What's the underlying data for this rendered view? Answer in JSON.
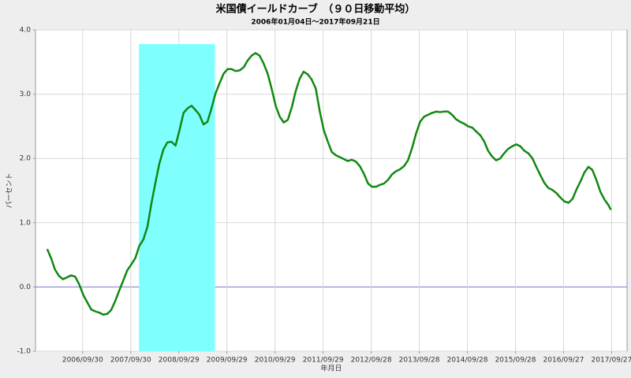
{
  "chart_data": {
    "type": "line",
    "title": "米国債イールドカーブ　（９０日移動平均）",
    "subtitle": "2006年01月04日～2017年09月21日",
    "y_label": "パーセント",
    "x_label": "年月日",
    "xlim": [
      "2005-10-07",
      "2018-01-22"
    ],
    "ylim": [
      -1.0,
      4.0
    ],
    "yticks": [
      {
        "value": -1.0,
        "label": "-1.0"
      },
      {
        "value": 0.0,
        "label": "0.0"
      },
      {
        "value": 1.0,
        "label": "1.0"
      },
      {
        "value": 2.0,
        "label": "2.0"
      },
      {
        "value": 3.0,
        "label": "3.0"
      },
      {
        "value": 4.0,
        "label": "4.0"
      }
    ],
    "xticks": [
      {
        "value": "2006-09-30",
        "label": "2006/09/30"
      },
      {
        "value": "2007-09-30",
        "label": "2007/09/30"
      },
      {
        "value": "2008-09-29",
        "label": "2008/09/29"
      },
      {
        "value": "2009-09-29",
        "label": "2009/09/29"
      },
      {
        "value": "2010-09-29",
        "label": "2010/09/29"
      },
      {
        "value": "2011-09-29",
        "label": "2011/09/29"
      },
      {
        "value": "2012-09-28",
        "label": "2012/09/28"
      },
      {
        "value": "2013-09-28",
        "label": "2013/09/28"
      },
      {
        "value": "2014-09-28",
        "label": "2014/09/28"
      },
      {
        "value": "2015-09-28",
        "label": "2015/09/28"
      },
      {
        "value": "2016-09-27",
        "label": "2016/09/27"
      },
      {
        "value": "2017-09-27",
        "label": "2017/09/27"
      }
    ],
    "grid": true,
    "zero_line_color": "#7777cc",
    "highlight": {
      "x": [
        "2007-12-01",
        "2009-06-30"
      ],
      "ylim": [
        -1.0,
        3.78
      ],
      "color": "#80ffff"
    },
    "x": [
      "2006-01-04",
      "2006-02-04",
      "2006-03-04",
      "2006-04-04",
      "2006-05-04",
      "2006-06-04",
      "2006-07-04",
      "2006-08-04",
      "2006-09-04",
      "2006-10-04",
      "2006-11-04",
      "2006-12-04",
      "2007-01-04",
      "2007-02-04",
      "2007-03-04",
      "2007-04-04",
      "2007-05-04",
      "2007-06-04",
      "2007-07-04",
      "2007-08-04",
      "2007-09-04",
      "2007-10-04",
      "2007-11-04",
      "2007-12-04",
      "2008-01-04",
      "2008-02-04",
      "2008-03-04",
      "2008-04-04",
      "2008-05-04",
      "2008-06-04",
      "2008-07-04",
      "2008-08-04",
      "2008-09-04",
      "2008-10-04",
      "2008-11-04",
      "2008-12-04",
      "2009-01-04",
      "2009-02-04",
      "2009-03-04",
      "2009-04-04",
      "2009-05-04",
      "2009-06-04",
      "2009-07-04",
      "2009-08-04",
      "2009-09-04",
      "2009-10-04",
      "2009-11-04",
      "2009-12-04",
      "2010-01-04",
      "2010-02-04",
      "2010-03-04",
      "2010-04-04",
      "2010-05-04",
      "2010-06-04",
      "2010-07-04",
      "2010-08-04",
      "2010-09-04",
      "2010-10-04",
      "2010-11-04",
      "2010-12-04",
      "2011-01-04",
      "2011-02-04",
      "2011-03-04",
      "2011-04-04",
      "2011-05-04",
      "2011-06-04",
      "2011-07-04",
      "2011-08-04",
      "2011-09-04",
      "2011-10-04",
      "2011-11-04",
      "2011-12-04",
      "2012-01-04",
      "2012-02-04",
      "2012-03-04",
      "2012-04-04",
      "2012-05-04",
      "2012-06-04",
      "2012-07-04",
      "2012-08-04",
      "2012-09-04",
      "2012-10-04",
      "2012-11-04",
      "2012-12-04",
      "2013-01-04",
      "2013-02-04",
      "2013-03-04",
      "2013-04-04",
      "2013-05-04",
      "2013-06-04",
      "2013-07-04",
      "2013-08-04",
      "2013-09-04",
      "2013-10-04",
      "2013-11-04",
      "2013-12-04",
      "2014-01-04",
      "2014-02-04",
      "2014-03-04",
      "2014-04-04",
      "2014-05-04",
      "2014-06-04",
      "2014-07-04",
      "2014-08-04",
      "2014-09-04",
      "2014-10-04",
      "2014-11-04",
      "2014-12-04",
      "2015-01-04",
      "2015-02-04",
      "2015-03-04",
      "2015-04-04",
      "2015-05-04",
      "2015-06-04",
      "2015-07-04",
      "2015-08-04",
      "2015-09-04",
      "2015-10-04",
      "2015-11-04",
      "2015-12-04",
      "2016-01-04",
      "2016-02-04",
      "2016-03-04",
      "2016-04-04",
      "2016-05-04",
      "2016-06-04",
      "2016-07-04",
      "2016-08-04",
      "2016-09-04",
      "2016-10-04",
      "2016-11-04",
      "2016-12-04",
      "2017-01-04",
      "2017-02-04",
      "2017-03-04",
      "2017-04-04",
      "2017-05-04",
      "2017-06-04",
      "2017-07-04",
      "2017-08-04",
      "2017-09-04",
      "2017-09-21"
    ],
    "series": [
      {
        "name": "イールドカーブ",
        "color": "#118811",
        "values": [
          0.59,
          0.44,
          0.27,
          0.17,
          0.12,
          0.15,
          0.18,
          0.16,
          0.04,
          -0.12,
          -0.24,
          -0.35,
          -0.38,
          -0.4,
          -0.43,
          -0.42,
          -0.36,
          -0.22,
          -0.06,
          0.1,
          0.26,
          0.35,
          0.45,
          0.64,
          0.74,
          0.94,
          1.29,
          1.62,
          1.92,
          2.14,
          2.25,
          2.26,
          2.2,
          2.44,
          2.71,
          2.78,
          2.82,
          2.75,
          2.68,
          2.53,
          2.57,
          2.78,
          3.01,
          3.17,
          3.32,
          3.39,
          3.39,
          3.36,
          3.37,
          3.42,
          3.52,
          3.6,
          3.64,
          3.6,
          3.48,
          3.32,
          3.08,
          2.82,
          2.65,
          2.56,
          2.6,
          2.8,
          3.04,
          3.24,
          3.35,
          3.31,
          3.23,
          3.09,
          2.73,
          2.44,
          2.26,
          2.1,
          2.05,
          2.02,
          1.99,
          1.96,
          1.98,
          1.95,
          1.88,
          1.76,
          1.61,
          1.56,
          1.56,
          1.59,
          1.61,
          1.67,
          1.75,
          1.8,
          1.83,
          1.88,
          1.97,
          2.16,
          2.39,
          2.57,
          2.65,
          2.68,
          2.71,
          2.73,
          2.72,
          2.73,
          2.73,
          2.68,
          2.61,
          2.57,
          2.54,
          2.5,
          2.48,
          2.42,
          2.36,
          2.26,
          2.12,
          2.03,
          1.97,
          2.0,
          2.08,
          2.15,
          2.19,
          2.22,
          2.19,
          2.12,
          2.08,
          2.0,
          1.87,
          1.74,
          1.62,
          1.54,
          1.51,
          1.46,
          1.39,
          1.33,
          1.31,
          1.37,
          1.52,
          1.65,
          1.78,
          1.87,
          1.82,
          1.66,
          1.48,
          1.36,
          1.27,
          1.2
        ]
      }
    ]
  }
}
